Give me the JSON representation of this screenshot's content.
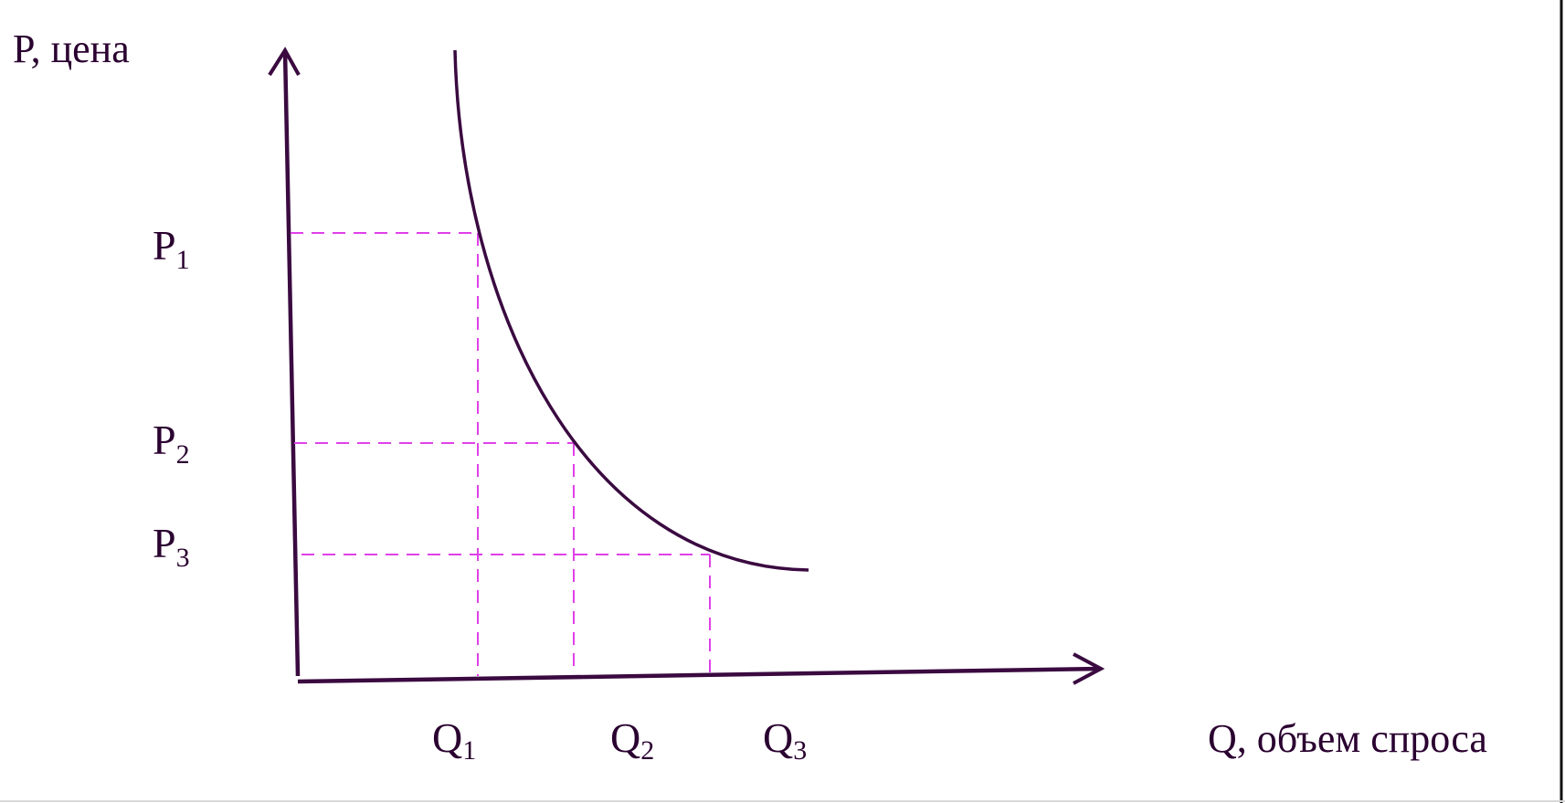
{
  "diagram": {
    "y_axis_label": "P, цена",
    "x_axis_label": "Q, объем спроса",
    "price_levels": [
      {
        "letter": "P",
        "sub": "1"
      },
      {
        "letter": "P",
        "sub": "2"
      },
      {
        "letter": "P",
        "sub": "3"
      }
    ],
    "quantity_levels": [
      {
        "letter": "Q",
        "sub": "1"
      },
      {
        "letter": "Q",
        "sub": "2"
      },
      {
        "letter": "Q",
        "sub": "3"
      }
    ],
    "colors": {
      "axis": "#3a0a40",
      "curve": "#3a0a40",
      "guides": "#e040e8",
      "right_edge": "#111111"
    }
  }
}
